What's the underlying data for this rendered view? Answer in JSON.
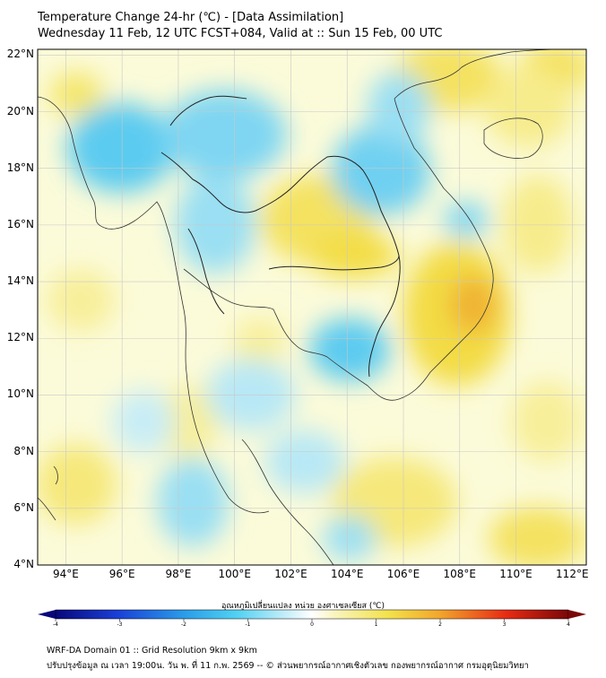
{
  "header": {
    "title_line1": "Temperature Change 24-hr (℃) - [Data Assimilation]",
    "title_line2": "Wednesday 11 Feb, 12 UTC FCST+084, Valid at :: Sun 15 Feb, 00 UTC"
  },
  "map": {
    "lat_labels": [
      "22°N",
      "20°N",
      "18°N",
      "16°N",
      "14°N",
      "12°N",
      "10°N",
      "8°N",
      "6°N",
      "4°N"
    ],
    "lon_labels": [
      "94°E",
      "96°E",
      "98°E",
      "100°E",
      "102°E",
      "104°E",
      "106°E",
      "108°E",
      "110°E",
      "112°E"
    ],
    "lat_range": [
      4,
      22.2
    ],
    "lon_range": [
      93,
      112.5
    ]
  },
  "colorbar": {
    "label": "อุณหภูมิเปลี่ยนแปลง หน่วย องศาเซลเซียส (℃)",
    "min": -4,
    "max": 4,
    "ticks": [
      "-4",
      "-3",
      "-2",
      "-1",
      "0",
      "1",
      "2",
      "3",
      "4"
    ]
  },
  "footer": {
    "line1": "WRF-DA Domain 01 :: Grid Resolution 9km x 9km",
    "line2": "ปรับปรุงข้อมูล ณ เวลา 19:00น. วัน พ. ที่ 11 ก.พ. 2569 -- © ส่วนพยากรณ์อากาศเชิงตัวเลข กองพยากรณ์อากาศ กรมอุตุนิยมวิทยา"
  },
  "colors": {
    "cold": "#4fc3ef",
    "warm": "#f2de45",
    "hot": "#f0a830",
    "frame": "#000000"
  }
}
